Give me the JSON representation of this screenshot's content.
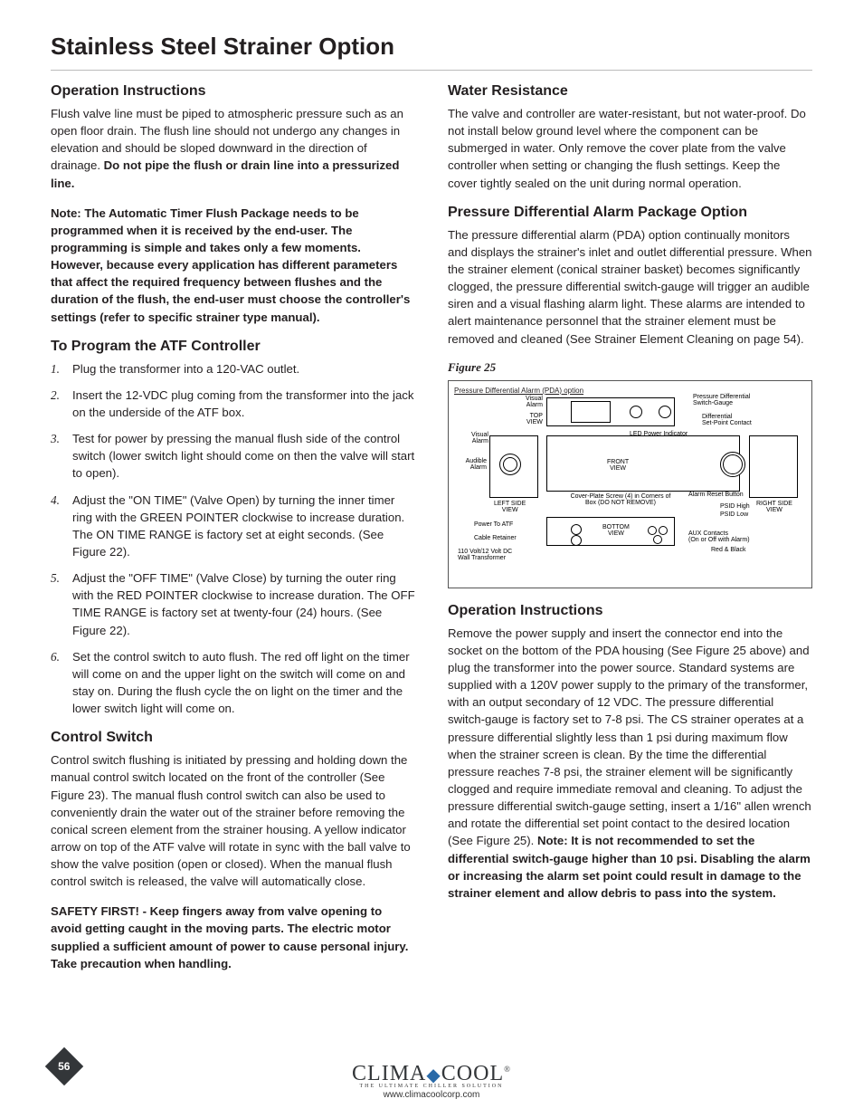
{
  "page": {
    "number": "56",
    "title": "Stainless Steel Strainer Option"
  },
  "footer": {
    "logo_main": "CLIMA",
    "logo_main2": "COOL",
    "logo_tagline": "THE ULTIMATE CHILLER SOLUTION",
    "url": "www.climacoolcorp.com",
    "reg": "®"
  },
  "left": {
    "h_op": "Operation Instructions",
    "p_op_1": "Flush valve line must be piped to atmospheric pressure such as an open floor drain. The flush line should not undergo any changes in elevation and should be sloped downward in the direction of drainage. ",
    "p_op_1b": "Do not pipe the flush or drain line into a pressurized line.",
    "p_op_note": "Note: The Automatic Timer Flush Package needs to be programmed when it is received by the end-user. The programming is simple and takes only a few moments. However, because every application has different parameters that affect the required frequency between flushes and the duration of the flush, the end-user must choose the controller's settings (refer to specific strainer type manual).",
    "h_prog": "To Program the ATF Controller",
    "ol": [
      "Plug the transformer into a 120-VAC outlet.",
      "Insert the 12-VDC plug coming from the transformer into the jack on the underside of the ATF box.",
      "Test for power by pressing the manual flush side of the control switch (lower switch light should come on then the valve will start to open).",
      "Adjust the \"ON TIME\" (Valve Open) by turning the inner timer ring with the GREEN POINTER clockwise to increase duration. The ON TIME RANGE is factory set at eight seconds. (See Figure 22).",
      "Adjust the \"OFF TIME\" (Valve Close) by turning the outer ring with the RED POINTER clockwise to increase duration. The OFF TIME RANGE is factory set at twenty-four (24) hours. (See Figure 22).",
      "Set the control switch to auto flush. The red off light on the timer will come on and the upper light on the switch will come on and stay on. During the flush cycle the on light on the timer and the lower switch light will come on."
    ],
    "h_cs": "Control Switch",
    "p_cs": "Control switch flushing is initiated by pressing and holding down the manual control switch located on the front of the controller (See Figure 23). The manual flush control switch can also be used to conveniently drain the water out of the strainer before removing the conical screen element from the strainer housing. A yellow indicator arrow on top of the ATF valve will rotate in sync with the ball valve to show the valve position (open or closed). When the manual flush control switch is released, the valve will automatically close.",
    "p_safety": "SAFETY FIRST!  -  Keep fingers away from valve opening to avoid getting caught in the moving parts. The electric motor supplied a sufficient amount of power to cause personal injury. Take precaution when handling."
  },
  "right": {
    "h_wr": "Water Resistance",
    "p_wr": "The valve and controller are water-resistant, but not water-proof. Do not install below ground level where the component can be submerged in water. Only remove the cover plate from the valve controller when setting or changing the flush settings. Keep the cover tightly sealed on the unit during normal operation.",
    "h_pda": "Pressure Differential Alarm Package Option",
    "p_pda": "The pressure differential alarm (PDA) option continually monitors and displays the strainer's inlet and outlet differential pressure. When the strainer element (conical strainer basket) becomes significantly clogged, the pressure differential switch-gauge will trigger an audible siren and a visual flashing alarm light. These alarms are intended to alert maintenance personnel that the strainer element must be removed and cleaned (See Strainer Element Cleaning on page 54).",
    "fig_caption": "Figure 25",
    "fig": {
      "title": "Pressure Differential Alarm (PDA) option",
      "labels": {
        "visual_alarm": "Visual\nAlarm",
        "top_view": "TOP\nVIEW",
        "visual_alarm2": "Visual\nAlarm",
        "audible_alarm": "Audible\nAlarm",
        "left_side": "LEFT SIDE\nVIEW",
        "power_atf": "Power To ATF",
        "cable_ret": "Cable Retainer",
        "wall_trans": "110 Volt/12 Volt DC\nWall Transformer",
        "pd_sg": "Pressure Differential\nSwitch-Gauge",
        "diff_sp": "Differential\nSet-Point Contact",
        "led": "LED Power Indicator",
        "front": "FRONT\nVIEW",
        "cover": "Cover-Plate Screw (4) in Corners of\nBox (DO NOT REMOVE)",
        "alarm_reset": "Alarm Reset Button",
        "psid_high": "PSID High",
        "psid_low": "PSID Low",
        "right_side": "RIGHT SIDE\nVIEW",
        "bottom": "BOTTOM\nVIEW",
        "aux": "AUX Contacts\n(On or Off with Alarm)",
        "redblack": "Red & Black"
      }
    },
    "h_op2": "Operation Instructions",
    "p_op2_a": "Remove the power supply and insert the connector end into the socket on the bottom of the PDA housing (See Figure 25 above) and plug the transformer into the power source. Standard systems are supplied with a 120V power supply to the primary of the transformer, with an output secondary of 12 VDC. The pressure differential switch-gauge is factory set to 7-8 psi. The CS strainer operates at a pressure differential slightly less than 1 psi during maximum flow when the strainer screen is clean. By the time the differential pressure reaches 7-8 psi, the strainer element will be significantly clogged and require immediate removal and cleaning. To adjust the pressure differential switch-gauge setting, insert a 1/16\" allen wrench and rotate the differential set point contact to the desired location (See Figure 25). ",
    "p_op2_b": "Note: It is not recommended to set the differential switch-gauge higher than 10 psi. Disabling the alarm or increasing the alarm set point could result in damage to the strainer element and allow debris to pass into the system."
  }
}
